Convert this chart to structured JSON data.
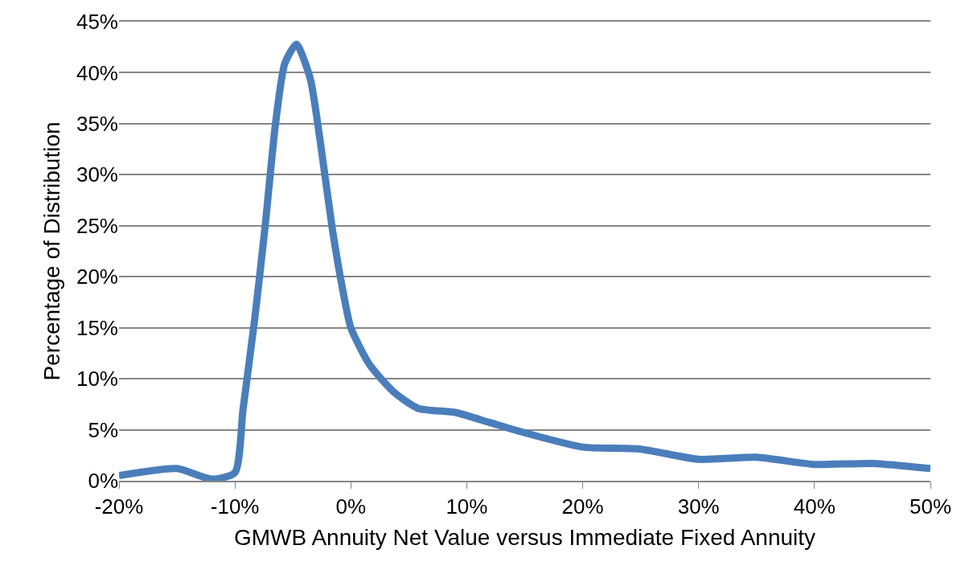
{
  "chart_data": {
    "type": "line",
    "xlabel": "GMWB Annuity Net Value versus Immediate Fixed Annuity",
    "ylabel": "Percentage of Distribution",
    "series": [
      {
        "color": "#4a7ebb",
        "x": [
          -20,
          -15,
          -12,
          -10,
          -9.3,
          -8.3,
          -7.4,
          -6.5,
          -5.7,
          -4.7,
          -3.5,
          -2.5,
          -1.6,
          -0.7,
          0,
          1.6,
          3.7,
          5.8,
          9,
          12,
          15,
          20,
          25,
          30,
          35,
          40,
          45,
          50
        ],
        "values": [
          0.5,
          1.2,
          0.15,
          0.8,
          7,
          15.8,
          24.9,
          35,
          40.9,
          42.8,
          39.4,
          32.1,
          24.7,
          18.7,
          15,
          11.4,
          8.7,
          7.1,
          6.7,
          5.7,
          4.7,
          3.3,
          3.1,
          2.1,
          2.3,
          1.6,
          1.7,
          1.2
        ]
      }
    ],
    "xlim": [
      -20,
      50
    ],
    "xticks": [
      {
        "value": -20,
        "label": "-20%"
      },
      {
        "value": -10,
        "label": "-10%"
      },
      {
        "value": 0,
        "label": "0%"
      },
      {
        "value": 10,
        "label": "10%"
      },
      {
        "value": 20,
        "label": "20%"
      },
      {
        "value": 30,
        "label": "30%"
      },
      {
        "value": 40,
        "label": "40%"
      },
      {
        "value": 50,
        "label": "50%"
      }
    ],
    "ylim": [
      0,
      45
    ],
    "yticks": [
      {
        "value": 0,
        "label": "0%"
      },
      {
        "value": 5,
        "label": "5%"
      },
      {
        "value": 10,
        "label": "10%"
      },
      {
        "value": 15,
        "label": "15%"
      },
      {
        "value": 20,
        "label": "20%"
      },
      {
        "value": 25,
        "label": "25%"
      },
      {
        "value": 30,
        "label": "30%"
      },
      {
        "value": 35,
        "label": "35%"
      },
      {
        "value": 40,
        "label": "40%"
      },
      {
        "value": 45,
        "label": "45%"
      }
    ],
    "grid": "y",
    "legend": false,
    "marker": "none",
    "line_style": "solid"
  }
}
